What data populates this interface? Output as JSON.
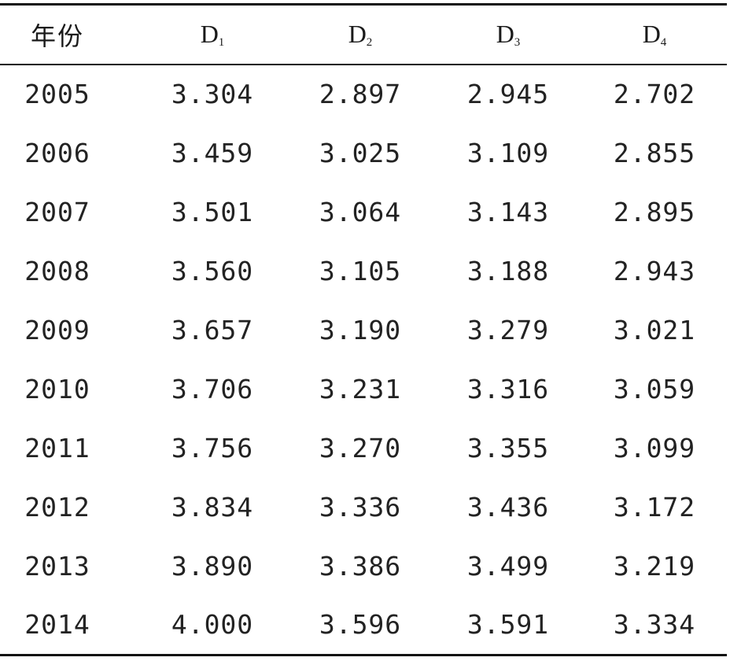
{
  "table": {
    "headers": [
      {
        "main": "年份",
        "sub": ""
      },
      {
        "main": "D",
        "sub": "1"
      },
      {
        "main": "D",
        "sub": "2"
      },
      {
        "main": "D",
        "sub": "3"
      },
      {
        "main": "D",
        "sub": "4"
      }
    ],
    "rows": [
      [
        "2005",
        "3.304",
        "2.897",
        "2.945",
        "2.702"
      ],
      [
        "2006",
        "3.459",
        "3.025",
        "3.109",
        "2.855"
      ],
      [
        "2007",
        "3.501",
        "3.064",
        "3.143",
        "2.895"
      ],
      [
        "2008",
        "3.560",
        "3.105",
        "3.188",
        "2.943"
      ],
      [
        "2009",
        "3.657",
        "3.190",
        "3.279",
        "3.021"
      ],
      [
        "2010",
        "3.706",
        "3.231",
        "3.316",
        "3.059"
      ],
      [
        "2011",
        "3.756",
        "3.270",
        "3.355",
        "3.099"
      ],
      [
        "2012",
        "3.834",
        "3.336",
        "3.436",
        "3.172"
      ],
      [
        "2013",
        "3.890",
        "3.386",
        "3.499",
        "3.219"
      ],
      [
        "2014",
        "4.000",
        "3.596",
        "3.591",
        "3.334"
      ]
    ]
  }
}
